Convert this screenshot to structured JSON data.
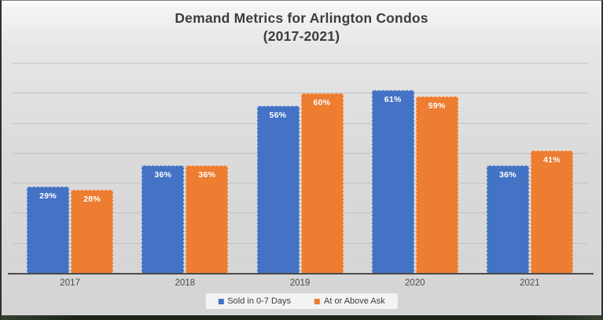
{
  "chart_data": {
    "type": "bar",
    "title": "Demand Metrics for Arlington Condos (2017-2021)",
    "title_lines": [
      "Demand Metrics for Arlington Condos",
      "(2017-2021)"
    ],
    "categories": [
      "2017",
      "2018",
      "2019",
      "2020",
      "2021"
    ],
    "series": [
      {
        "name": "Sold in 0-7 Days",
        "color": "#4472C4",
        "values": [
          29,
          36,
          56,
          61,
          36
        ]
      },
      {
        "name": "At or Above Ask",
        "color": "#ED7D31",
        "values": [
          28,
          36,
          60,
          59,
          41
        ]
      }
    ],
    "value_suffix": "%",
    "data_labels": "inside-end-white-bold",
    "ylim": [
      0,
      70
    ],
    "grid_interval": 10,
    "grid": true,
    "y_axis_labels_visible": false,
    "legend_position": "bottom",
    "colors": {
      "background": "#dadada",
      "gridline": "#c2c2c2",
      "axis_line": "#4b4b4b",
      "title_text": "#3d3d3d",
      "tick_text": "#4d4d4d"
    }
  }
}
